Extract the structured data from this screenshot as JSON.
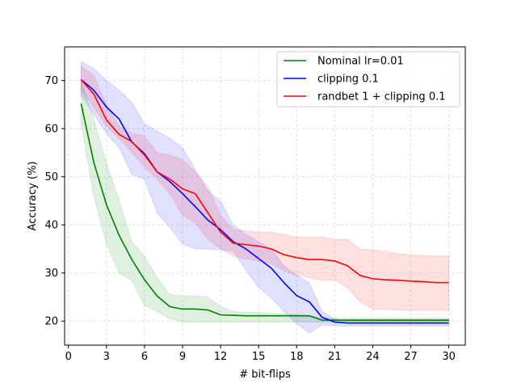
{
  "chart_data": {
    "type": "line",
    "title": "",
    "xlabel": "# bit-flips",
    "ylabel": "Accuracy (%)",
    "xlim": [
      -0.3,
      31.3
    ],
    "ylim": [
      15,
      77
    ],
    "xticks": [
      0,
      3,
      6,
      9,
      12,
      15,
      18,
      21,
      24,
      27,
      30
    ],
    "yticks": [
      20,
      30,
      40,
      50,
      60,
      70
    ],
    "grid": true,
    "legend_position": "top-right",
    "x": [
      1,
      2,
      3,
      4,
      5,
      6,
      7,
      8,
      9,
      10,
      11,
      12,
      13,
      14,
      15,
      16,
      17,
      18,
      19,
      20,
      21,
      22,
      23,
      24,
      25,
      26,
      27,
      28,
      29,
      30
    ],
    "series": [
      {
        "name": "Nominal lr=0.01",
        "color": "#008000",
        "values": [
          65.2,
          53.0,
          44.2,
          37.8,
          32.8,
          28.6,
          25.2,
          23.0,
          22.5,
          22.5,
          22.3,
          21.3,
          21.2,
          21.1,
          21.1,
          21.1,
          21.1,
          21.1,
          21.1,
          20.2,
          20.2,
          20.2,
          20.2,
          20.2,
          20.2,
          20.2,
          20.2,
          20.2,
          20.2,
          20.2
        ],
        "upper": [
          70.0,
          62.0,
          53.0,
          45.0,
          36.5,
          33.5,
          29.0,
          25.5,
          25.2,
          25.2,
          25.0,
          23.0,
          22.0,
          21.8,
          21.8,
          21.6,
          21.5,
          21.3,
          21.2,
          20.6,
          20.6,
          20.6,
          20.6,
          20.6,
          20.6,
          20.6,
          20.6,
          20.6,
          20.6,
          20.6
        ],
        "lower": [
          61.0,
          46.0,
          36.0,
          30.0,
          28.5,
          23.2,
          22.0,
          20.5,
          19.8,
          19.8,
          19.8,
          19.8,
          19.8,
          19.8,
          19.8,
          19.8,
          19.8,
          19.8,
          19.8,
          19.8,
          19.8,
          19.8,
          19.8,
          19.8,
          19.8,
          19.8,
          19.8,
          19.8,
          19.8,
          19.8
        ]
      },
      {
        "name": "clipping 0.1",
        "color": "#0000ff",
        "values": [
          70.2,
          68.0,
          64.5,
          62.0,
          57.2,
          54.8,
          51.0,
          49.0,
          46.5,
          43.8,
          41.0,
          39.0,
          36.5,
          35.0,
          33.0,
          31.0,
          28.0,
          25.3,
          24.0,
          20.8,
          19.8,
          19.6,
          19.6,
          19.6,
          19.6,
          19.6,
          19.6,
          19.6,
          19.6,
          19.6
        ],
        "upper": [
          74.0,
          72.5,
          70.0,
          68.0,
          65.5,
          61.0,
          59.5,
          58.0,
          56.0,
          51.5,
          47.0,
          45.0,
          40.0,
          38.0,
          36.5,
          35.0,
          31.5,
          29.5,
          28.0,
          22.0,
          20.5,
          20.0,
          20.0,
          20.0,
          20.0,
          20.0,
          20.0,
          20.0,
          20.0,
          20.0
        ],
        "lower": [
          67.0,
          63.0,
          59.0,
          56.0,
          50.5,
          49.5,
          42.5,
          39.5,
          36.0,
          35.0,
          35.0,
          34.8,
          34.5,
          30.5,
          27.0,
          24.8,
          22.0,
          19.5,
          17.5,
          19.2,
          19.0,
          19.0,
          19.0,
          19.0,
          19.0,
          19.0,
          19.0,
          19.0,
          19.0,
          19.0
        ]
      },
      {
        "name": "randbet 1 + clipping 0.1",
        "color": "#ff0000",
        "values": [
          70.2,
          67.2,
          61.8,
          58.8,
          57.3,
          54.5,
          51.0,
          49.5,
          47.5,
          46.5,
          42.5,
          38.5,
          36.2,
          35.9,
          35.6,
          35.0,
          33.8,
          33.2,
          32.8,
          32.8,
          32.5,
          31.5,
          29.5,
          28.8,
          28.6,
          28.5,
          28.3,
          28.2,
          28.0,
          28.0
        ],
        "upper": [
          73.0,
          71.0,
          65.0,
          60.5,
          59.0,
          58.5,
          55.0,
          54.5,
          53.5,
          51.0,
          48.0,
          42.0,
          39.0,
          38.8,
          38.5,
          38.5,
          38.0,
          37.5,
          37.5,
          37.5,
          37.0,
          37.0,
          35.0,
          34.8,
          34.5,
          34.0,
          33.8,
          33.6,
          33.5,
          33.5
        ],
        "lower": [
          68.0,
          64.5,
          60.5,
          58.0,
          55.0,
          52.0,
          49.5,
          46.5,
          42.0,
          40.5,
          37.0,
          35.0,
          33.5,
          33.0,
          32.5,
          32.0,
          30.5,
          29.5,
          29.0,
          28.5,
          28.5,
          27.0,
          24.0,
          22.5,
          22.4,
          22.3,
          22.2,
          22.2,
          22.2,
          22.2
        ]
      }
    ]
  }
}
